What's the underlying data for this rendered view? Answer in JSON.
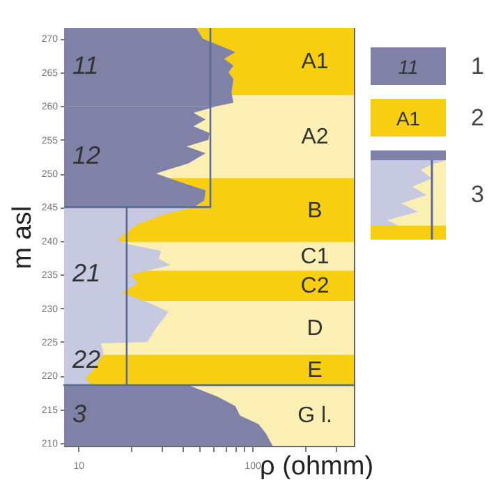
{
  "chart_data": {
    "type": "area",
    "orientation": "horizontal",
    "xlabel": "ρ (ohmm)",
    "ylabel": "m asl",
    "log": "x",
    "xlim": [
      8.3,
      384
    ],
    "ylim": [
      209.6,
      271.6
    ],
    "xticks": [
      10,
      {
        "value": 20,
        "label": null
      },
      {
        "value": 30,
        "label": null
      },
      {
        "value": 40,
        "label": null
      },
      {
        "value": 50,
        "label": null
      },
      {
        "value": 60,
        "label": null
      },
      {
        "value": 70,
        "label": null
      },
      {
        "value": 80,
        "label": null
      },
      {
        "value": 90,
        "label": null
      },
      100,
      {
        "value": 200,
        "label": null
      },
      {
        "value": 300,
        "label": null
      }
    ],
    "yticks": [
      210,
      215,
      220,
      225,
      230,
      235,
      240,
      245,
      250,
      255,
      260,
      265,
      270
    ],
    "bands": [
      {
        "axis": "y",
        "from": 261.6,
        "to": 271.6,
        "label": "A1",
        "color": "#f7cf10"
      },
      {
        "axis": "y",
        "from": 249.3,
        "to": 261.6,
        "label": "A2",
        "color": "#fcefb4"
      },
      {
        "axis": "y",
        "from": 239.8,
        "to": 249.3,
        "label": "B",
        "color": "#f7cf10"
      },
      {
        "axis": "y",
        "from": 235.6,
        "to": 239.8,
        "label": "C1",
        "color": "#fcefb4"
      },
      {
        "axis": "y",
        "from": 231.1,
        "to": 235.6,
        "label": "C2",
        "color": "#f7cf10"
      },
      {
        "axis": "y",
        "from": 223.1,
        "to": 231.1,
        "label": "D",
        "color": "#fcefb4"
      },
      {
        "axis": "y",
        "from": 218.6,
        "to": 223.1,
        "label": "E",
        "color": "#f7cf10"
      },
      {
        "axis": "y",
        "from": 209.6,
        "to": 218.6,
        "label": "G l.",
        "color": "#fcefb4"
      }
    ],
    "series": [
      {
        "name": "11",
        "color": "#8081a6",
        "values": [
          47.6,
          52,
          80,
          69,
          78,
          73,
          78,
          76,
          78,
          63
        ],
        "x": [
          271.6,
          270,
          268,
          267,
          266,
          265,
          264,
          262,
          260.5,
          260
        ]
      },
      {
        "name": "12",
        "color": "#8081a6",
        "values": [
          63,
          46,
          54,
          46,
          57,
          56,
          42,
          54,
          43,
          28,
          36,
          54,
          53,
          46
        ],
        "x": [
          260,
          259,
          258,
          257,
          256,
          255,
          254,
          253,
          251.5,
          250,
          249,
          247.5,
          246,
          245
        ]
      },
      {
        "name": "21",
        "color": "#c6c9df",
        "values": [
          46,
          32,
          22,
          19.5,
          16.7,
          19.5,
          30,
          29,
          34,
          20,
          22,
          17.8,
          25,
          33,
          31,
          28,
          25
        ],
        "x": [
          245,
          244,
          242.5,
          241.5,
          240.2,
          239.5,
          238.5,
          237.4,
          236.4,
          235,
          233.7,
          232.3,
          230.9,
          229.5,
          228.5,
          227.1,
          225
        ]
      },
      {
        "name": "22",
        "color": "#c6c9df",
        "values": [
          25,
          18.4,
          13.5,
          14,
          13.3,
          12.3,
          11,
          12
        ],
        "x": [
          225,
          225.8,
          224.8,
          223.4,
          222.4,
          221,
          219.6,
          218.6
        ]
      },
      {
        "name": "3",
        "color": "#8081a6",
        "values": [
          43,
          63,
          80,
          85,
          109,
          120,
          131
        ],
        "x": [
          218.6,
          216.9,
          215.5,
          214.1,
          212.8,
          211.4,
          209.6
        ]
      },
      {
        "type": "line",
        "color": "#5b6b94",
        "values": [
          57.5,
          57.5,
          8.3
        ],
        "x": [
          271.6,
          245,
          245
        ]
      },
      {
        "type": "line",
        "color": "#5b6b94",
        "values": [
          19,
          19,
          8.3,
          384
        ],
        "x": [
          245,
          218.6,
          218.6,
          218.6
        ]
      }
    ],
    "annotations": [
      "11",
      "1",
      "A1",
      "2",
      "3"
    ]
  }
}
